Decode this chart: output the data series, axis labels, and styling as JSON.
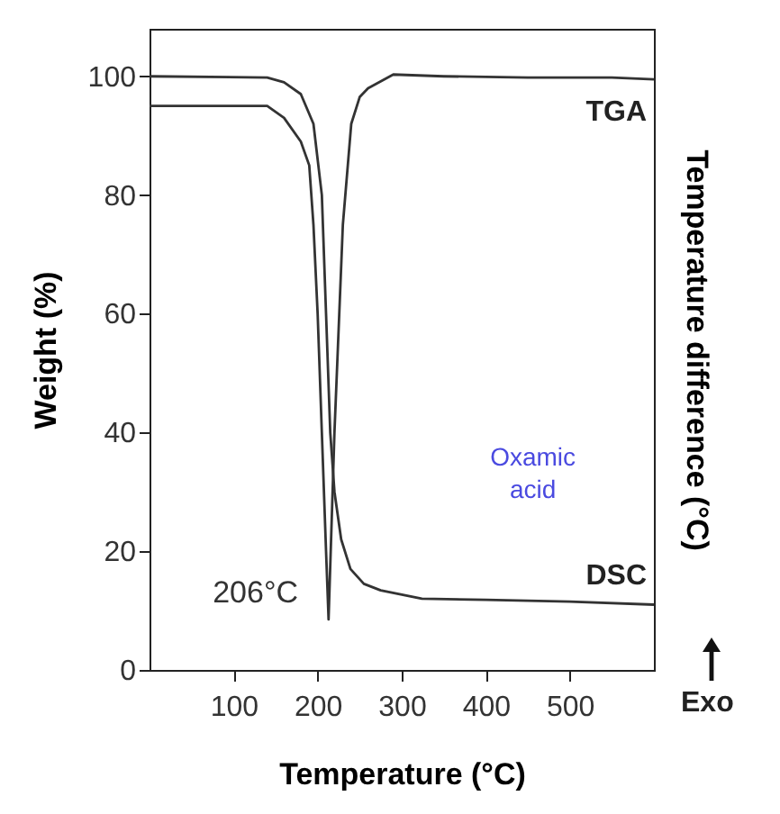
{
  "chart_data": {
    "type": "line",
    "xlabel": "Temperature (°C)",
    "ylabel": "Weight (%)",
    "y2label": "Temperature difference (°C)",
    "xlim": [
      0,
      600
    ],
    "xticks": [
      100,
      200,
      300,
      400,
      500
    ],
    "ylim": [
      0,
      108
    ],
    "yticks": [
      0,
      20,
      40,
      60,
      80,
      100
    ],
    "series": [
      {
        "name": "TGA",
        "color": "#333333",
        "x": [
          0,
          100,
          140,
          160,
          180,
          190,
          195,
          200,
          205,
          210,
          213,
          220,
          230,
          240,
          250,
          260,
          290,
          350,
          450,
          550,
          600
        ],
        "values": [
          95,
          95,
          95,
          93,
          89,
          85,
          75,
          60,
          40,
          20,
          8.5,
          40,
          75,
          92,
          96.5,
          98,
          100.3,
          100,
          99.8,
          99.8,
          99.5
        ]
      },
      {
        "name": "DSC",
        "color": "#333333",
        "x": [
          0,
          140,
          160,
          180,
          195,
          205,
          210,
          215,
          220,
          228,
          239,
          255,
          275,
          324,
          400,
          500,
          600
        ],
        "values": [
          100,
          99.8,
          99,
          97,
          92,
          80,
          60,
          40,
          30,
          22,
          17,
          14.5,
          13.4,
          12,
          11.8,
          11.5,
          11
        ]
      }
    ],
    "annotations": [
      "Oxamic acid",
      "206°C",
      "Exo"
    ]
  }
}
